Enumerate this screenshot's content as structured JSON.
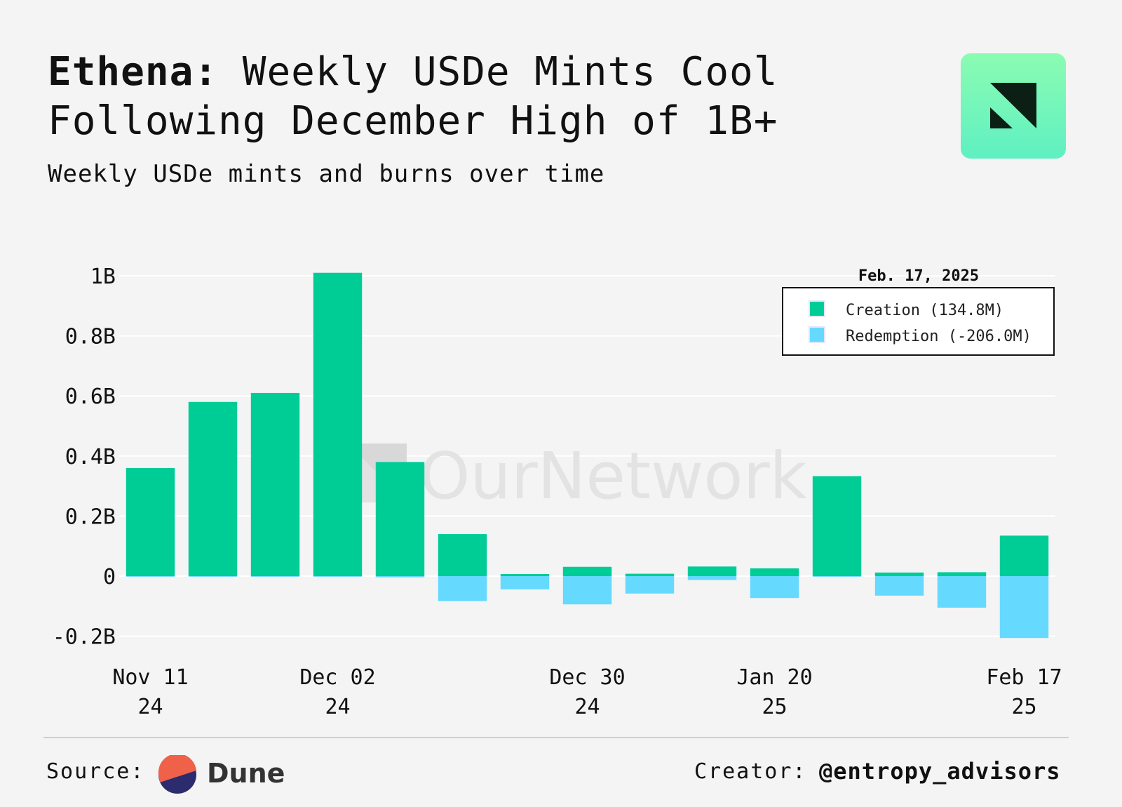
{
  "header": {
    "title_bold": "Ethena:",
    "title_rest": " Weekly USDe Mints Cool Following December High of 1B+",
    "subtitle": "Weekly USDe mints and burns over time"
  },
  "watermark": "OurNetwork",
  "footer": {
    "source_label": "Source:",
    "source_name": "Dune",
    "creator_label": "Creator:",
    "creator_handle": "@entropy_advisors"
  },
  "colors": {
    "creation": "#00cc96",
    "redemption": "#66d9ff",
    "background": "#f4f4f4",
    "grid": "#ffffff"
  },
  "chart_data": {
    "type": "bar",
    "stacked": "relative",
    "title": "",
    "xlabel": "",
    "ylabel": "",
    "ylim": [
      -0.22,
      1.05
    ],
    "y_ticks": [
      -0.2,
      0,
      0.2,
      0.4,
      0.6,
      0.8,
      1.0
    ],
    "y_tick_labels": [
      "-0.2B",
      "0",
      "0.2B",
      "0.4B",
      "0.6B",
      "0.8B",
      "1B"
    ],
    "x": [
      "2024-11-11",
      "2024-11-18",
      "2024-11-25",
      "2024-12-02",
      "2024-12-09",
      "2024-12-16",
      "2024-12-23",
      "2024-12-30",
      "2025-01-06",
      "2025-01-13",
      "2025-01-20",
      "2025-01-27",
      "2025-02-03",
      "2025-02-10",
      "2025-02-17"
    ],
    "x_tick_labels": [
      {
        "x": "2024-11-11",
        "line1": "Nov 11",
        "line2": "24"
      },
      {
        "x": "2024-12-02",
        "line1": "Dec 02",
        "line2": "24"
      },
      {
        "x": "2024-12-30",
        "line1": "Dec 30",
        "line2": "24"
      },
      {
        "x": "2025-01-20",
        "line1": "Jan 20",
        "line2": "25"
      },
      {
        "x": "2025-02-17",
        "line1": "Feb 17",
        "line2": "25"
      }
    ],
    "series": [
      {
        "name": "Creation",
        "values": [
          0.36,
          0.58,
          0.61,
          1.01,
          0.38,
          0.14,
          0.007,
          0.031,
          0.008,
          0.032,
          0.026,
          0.333,
          0.012,
          0.013,
          0.1348
        ]
      },
      {
        "name": "Redemption",
        "values": [
          -0.002,
          -0.002,
          -0.002,
          -0.002,
          -0.004,
          -0.083,
          -0.044,
          -0.094,
          -0.058,
          -0.013,
          -0.073,
          -0.002,
          -0.065,
          -0.105,
          -0.206
        ]
      }
    ],
    "legend": {
      "title": "Feb. 17, 2025",
      "placement": "top-right",
      "entries": [
        {
          "label": "Creation (134.8M)",
          "series": "Creation"
        },
        {
          "label": "Redemption (-206.0M)",
          "series": "Redemption"
        }
      ]
    },
    "grid": true
  }
}
